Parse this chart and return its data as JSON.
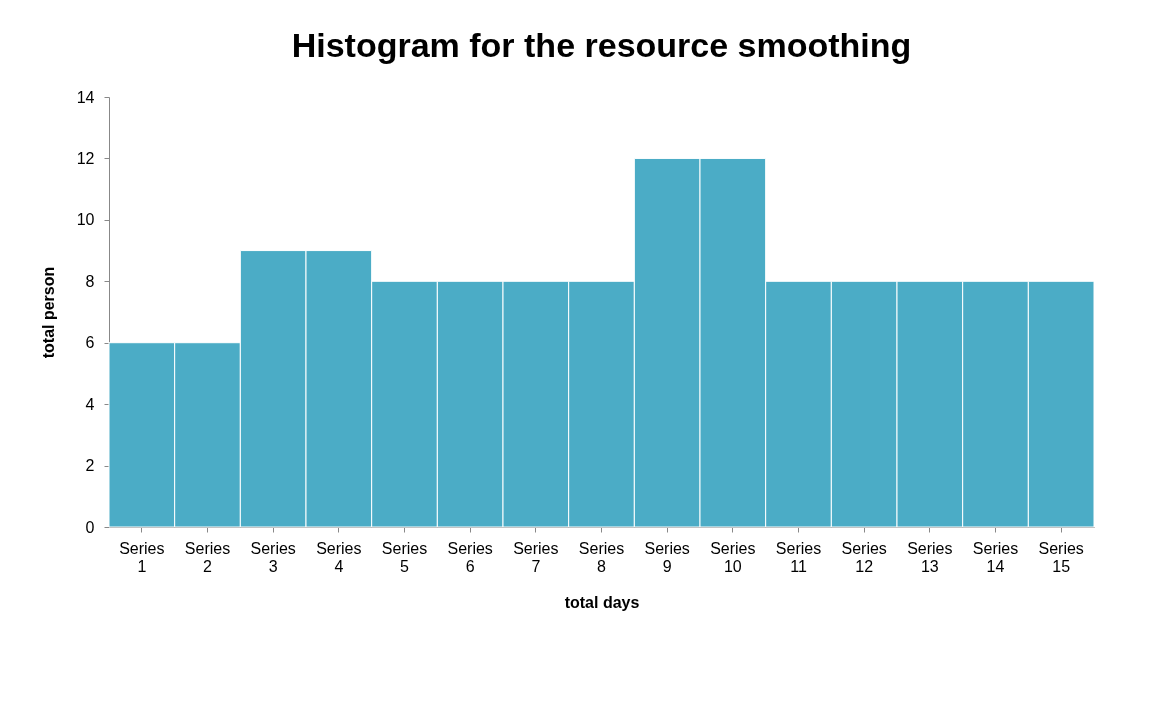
{
  "chart_data": {
    "type": "bar",
    "title": "Histogram for the resource smoothing",
    "xlabel": "total days",
    "ylabel": "total person",
    "categories": [
      "Series 1",
      "Series 2",
      "Series 3",
      "Series 4",
      "Series 5",
      "Series 6",
      "Series 7",
      "Series 8",
      "Series 9",
      "Series 10",
      "Series 11",
      "Series 12",
      "Series 13",
      "Series 14",
      "Series 15"
    ],
    "values": [
      6,
      6,
      9,
      9,
      8,
      8,
      8,
      8,
      12,
      12,
      8,
      8,
      8,
      8,
      8
    ],
    "color": "#4bacc6",
    "ylim": [
      0,
      14
    ],
    "yticks": [
      0,
      2,
      4,
      6,
      8,
      10,
      12,
      14
    ],
    "grid": false
  }
}
